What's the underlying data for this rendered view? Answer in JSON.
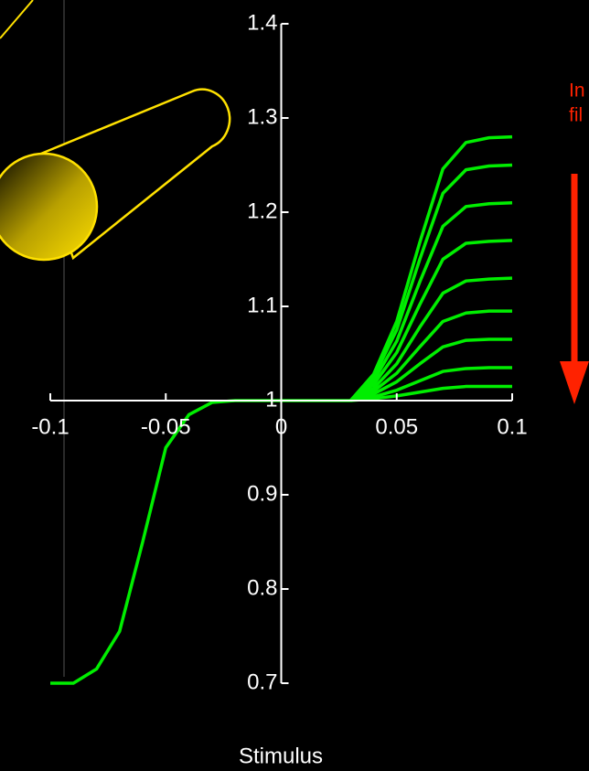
{
  "chart_data": {
    "type": "line",
    "xlabel": "Stimulus",
    "annotations": [
      "In",
      "fil"
    ],
    "x": [
      -0.1,
      -0.09,
      -0.08,
      -0.07,
      -0.06,
      -0.05,
      -0.04,
      -0.03,
      -0.02,
      -0.01,
      0,
      0.01,
      0.02,
      0.03,
      0.04,
      0.05,
      0.06,
      0.07,
      0.08,
      0.09,
      0.1
    ],
    "series": [
      {
        "color": "#00ee00",
        "values": [
          0.7,
          0.7,
          0.715,
          0.755,
          0.85,
          0.95,
          0.985,
          0.998,
          1,
          1,
          1,
          1,
          1,
          1,
          null,
          null,
          null,
          null,
          null,
          null,
          null
        ]
      },
      {
        "color": "#00ee00",
        "values": [
          null,
          null,
          null,
          null,
          null,
          null,
          null,
          null,
          null,
          null,
          null,
          null,
          null,
          1,
          1.028,
          1.084,
          1.168,
          1.246,
          1.274,
          1.279,
          1.28
        ]
      },
      {
        "color": "#00ee00",
        "values": [
          null,
          null,
          null,
          null,
          null,
          null,
          null,
          null,
          null,
          null,
          null,
          null,
          null,
          1,
          1.025,
          1.075,
          1.15,
          1.22,
          1.245,
          1.249,
          1.25
        ]
      },
      {
        "color": "#00ee00",
        "values": [
          null,
          null,
          null,
          null,
          null,
          null,
          null,
          null,
          null,
          null,
          null,
          null,
          null,
          1,
          1.021,
          1.063,
          1.126,
          1.185,
          1.206,
          1.209,
          1.21
        ]
      },
      {
        "color": "#00ee00",
        "values": [
          null,
          null,
          null,
          null,
          null,
          null,
          null,
          null,
          null,
          null,
          null,
          null,
          null,
          1,
          1.017,
          1.051,
          1.102,
          1.15,
          1.167,
          1.169,
          1.17
        ]
      },
      {
        "color": "#00ee00",
        "values": [
          null,
          null,
          null,
          null,
          null,
          null,
          null,
          null,
          null,
          null,
          null,
          null,
          null,
          1,
          1.013,
          1.039,
          1.078,
          1.114,
          1.127,
          1.129,
          1.13
        ]
      },
      {
        "color": "#00ee00",
        "values": [
          null,
          null,
          null,
          null,
          null,
          null,
          null,
          null,
          null,
          null,
          null,
          null,
          null,
          1,
          1.01,
          1.029,
          1.057,
          1.084,
          1.093,
          1.095,
          1.095
        ]
      },
      {
        "color": "#00ee00",
        "values": [
          null,
          null,
          null,
          null,
          null,
          null,
          null,
          null,
          null,
          null,
          null,
          null,
          null,
          1,
          1.007,
          1.02,
          1.039,
          1.057,
          1.064,
          1.065,
          1.065
        ]
      },
      {
        "color": "#00ee00",
        "values": [
          null,
          null,
          null,
          null,
          null,
          null,
          null,
          null,
          null,
          null,
          null,
          null,
          null,
          1,
          1.004,
          1.011,
          1.021,
          1.031,
          1.034,
          1.035,
          1.035
        ]
      },
      {
        "color": "#00ee00",
        "values": [
          null,
          null,
          null,
          null,
          null,
          null,
          null,
          null,
          null,
          null,
          null,
          null,
          null,
          1,
          1.002,
          1.005,
          1.009,
          1.013,
          1.015,
          1.015,
          1.015
        ]
      }
    ],
    "xlim": [
      -0.1,
      0.1
    ],
    "xticks": [
      -0.1,
      -0.05,
      0,
      0.05,
      0.1
    ],
    "ylim": [
      0.7,
      1.4
    ],
    "yticks": [
      0.7,
      0.8,
      0.9,
      1,
      1.1,
      1.2,
      1.3,
      1.4
    ]
  }
}
